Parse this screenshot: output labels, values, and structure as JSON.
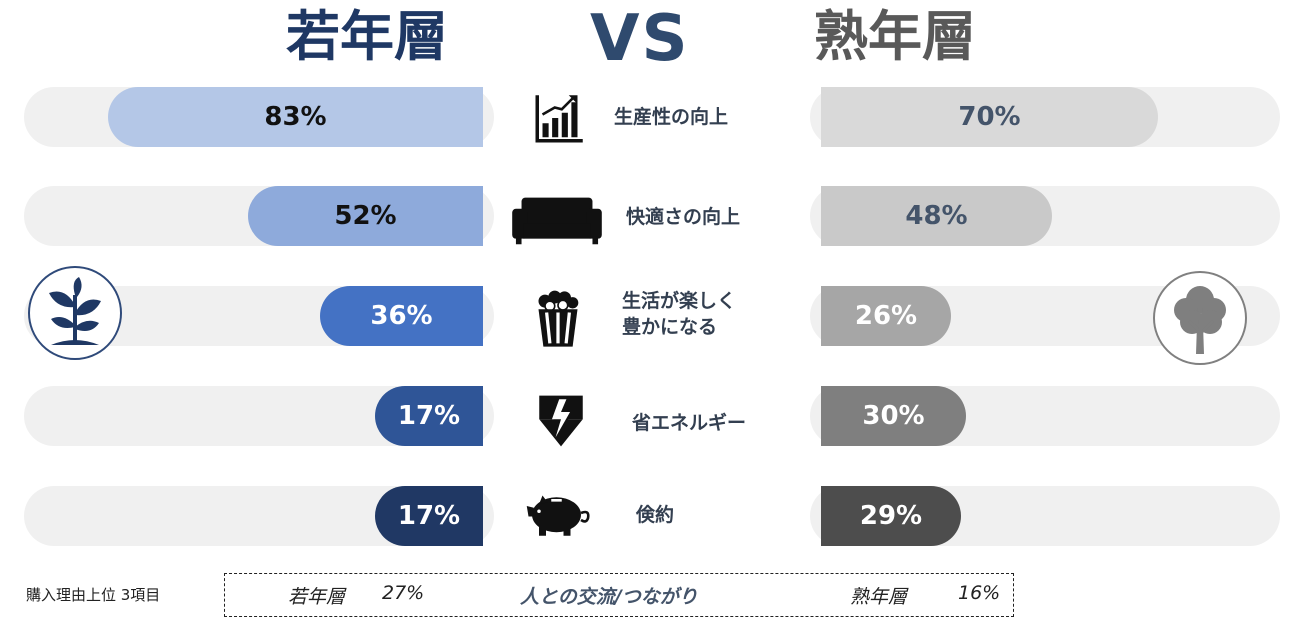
{
  "header": {
    "left": "若年層",
    "vs": "VS",
    "right": "熟年層"
  },
  "chart_data": {
    "type": "bar",
    "categories": [
      "生産性の向上",
      "快適さの向上",
      "生活が楽しく\n豊かになる",
      "省エネルギー",
      "倹約"
    ],
    "series": [
      {
        "name": "若年層",
        "values": [
          83,
          52,
          36,
          17,
          17
        ]
      },
      {
        "name": "熟年層",
        "values": [
          70,
          48,
          26,
          30,
          29
        ]
      }
    ],
    "value_labels_left": [
      "83%",
      "52%",
      "36%",
      "17%",
      "17%"
    ],
    "value_labels_right": [
      "70%",
      "48%",
      "26%",
      "30%",
      "29%"
    ],
    "colors_left": [
      "#b4c7e7",
      "#8eaadb",
      "#4472c4",
      "#2f5597",
      "#203864"
    ],
    "colors_right": [
      "#d9d9d9",
      "#c9c9c9",
      "#a6a6a6",
      "#7f7f7f",
      "#4d4d4d"
    ],
    "text_colors_left": [
      "#111111",
      "#111111",
      "#ffffff",
      "#ffffff",
      "#ffffff"
    ],
    "text_colors_right": [
      "#44546a",
      "#44546a",
      "#ffffff",
      "#ffffff",
      "#ffffff"
    ],
    "icons": [
      "growth-chart-icon",
      "sofa-icon",
      "popcorn-icon",
      "lightning-icon",
      "piggy-bank-icon"
    ]
  },
  "decorations": {
    "left": "sprout-icon",
    "right": "tree-icon"
  },
  "footer": {
    "title": "購入理由上位 3項目",
    "young_label": "若年層",
    "young_value": "27%",
    "reason": "人との交流/つながり",
    "old_label": "熟年層",
    "old_value": "16%"
  }
}
